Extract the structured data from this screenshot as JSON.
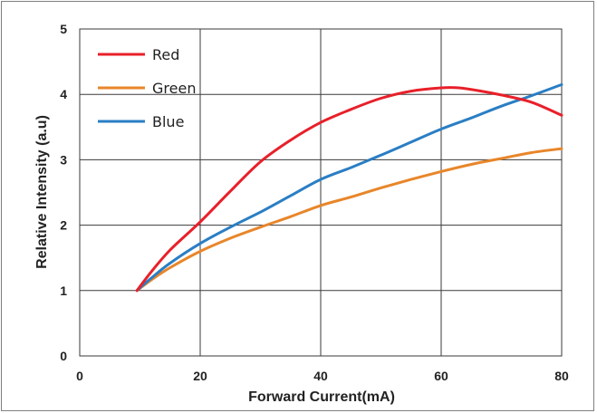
{
  "chart_data": {
    "type": "line",
    "title": "",
    "xlabel": "Forward Current(mA)",
    "ylabel": "Relative  Intensity (a.u)",
    "xlim": [
      0,
      80
    ],
    "ylim": [
      0,
      5
    ],
    "xticks": [
      "0",
      "20",
      "40",
      "60",
      "80"
    ],
    "yticks": [
      "0",
      "1",
      "2",
      "3",
      "4",
      "5"
    ],
    "grid": true,
    "legend_position": "top-left",
    "series": [
      {
        "name": "Red",
        "color": "#e8202a",
        "x": [
          9.5,
          12,
          15,
          20,
          25,
          30,
          35,
          40,
          45,
          50,
          55,
          60,
          63,
          66,
          70,
          75,
          80
        ],
        "y": [
          1.0,
          1.3,
          1.62,
          2.05,
          2.52,
          2.97,
          3.3,
          3.57,
          3.77,
          3.94,
          4.05,
          4.1,
          4.1,
          4.06,
          3.99,
          3.88,
          3.68
        ]
      },
      {
        "name": "Green",
        "color": "#e8862a",
        "x": [
          9.5,
          12,
          15,
          20,
          25,
          30,
          35,
          40,
          45,
          50,
          55,
          60,
          65,
          70,
          75,
          80
        ],
        "y": [
          1.0,
          1.17,
          1.35,
          1.6,
          1.8,
          1.97,
          2.13,
          2.3,
          2.43,
          2.57,
          2.7,
          2.82,
          2.93,
          3.02,
          3.11,
          3.17
        ]
      },
      {
        "name": "Blue",
        "color": "#2a7ec4",
        "x": [
          9.5,
          12,
          15,
          20,
          25,
          30,
          35,
          40,
          45,
          50,
          55,
          60,
          65,
          70,
          75,
          80
        ],
        "y": [
          1.0,
          1.2,
          1.42,
          1.72,
          1.97,
          2.2,
          2.45,
          2.7,
          2.88,
          3.07,
          3.27,
          3.47,
          3.64,
          3.82,
          3.98,
          4.15
        ]
      }
    ]
  }
}
